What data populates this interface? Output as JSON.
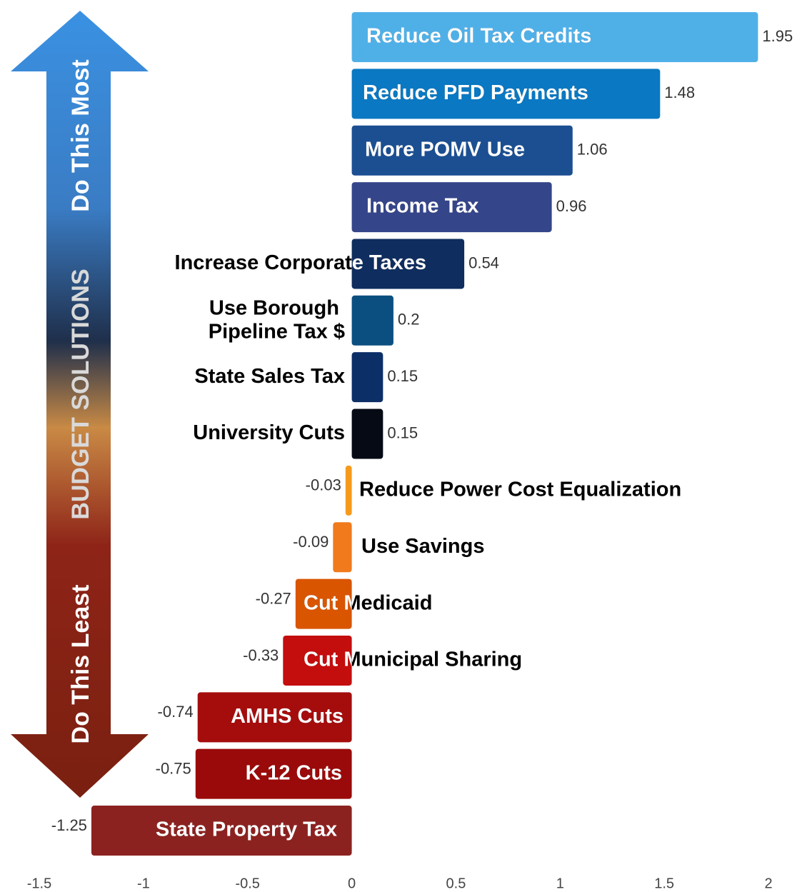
{
  "chart_data": {
    "type": "barh",
    "arrow": {
      "top": "Do This Most",
      "middle": "BUDGET SOLUTIONS",
      "bottom": "Do This Least"
    },
    "categories": [
      "Reduce Oil Tax Credits",
      "Reduce PFD Payments",
      "More POMV Use",
      "Income Tax",
      "Increase Corporate Taxes",
      "Use Borough\nPipeline Tax $",
      "State Sales Tax",
      "University Cuts",
      "Reduce Power Cost Equalization",
      "Use Savings",
      "Cut Medicaid",
      "Cut Municipal Sharing",
      "AMHS Cuts",
      "K-12 Cuts",
      "State Property Tax"
    ],
    "values": [
      1.95,
      1.48,
      1.06,
      0.96,
      0.54,
      0.2,
      0.15,
      0.15,
      -0.03,
      -0.09,
      -0.27,
      -0.33,
      -0.74,
      -0.75,
      -1.25
    ],
    "colors": [
      "#4fb0e8",
      "#0a78c2",
      "#1b4f92",
      "#35458a",
      "#0f2d5e",
      "#0b4f80",
      "#0c2f68",
      "#050a14",
      "#f59a1b",
      "#f07a1c",
      "#d95500",
      "#c40d0d",
      "#a50d0d",
      "#9a0a0a",
      "#8c2220"
    ],
    "xlim": [
      -1.5,
      2
    ],
    "xticks": [
      -1.5,
      -1,
      -0.5,
      0,
      0.5,
      1,
      1.5,
      2
    ]
  }
}
